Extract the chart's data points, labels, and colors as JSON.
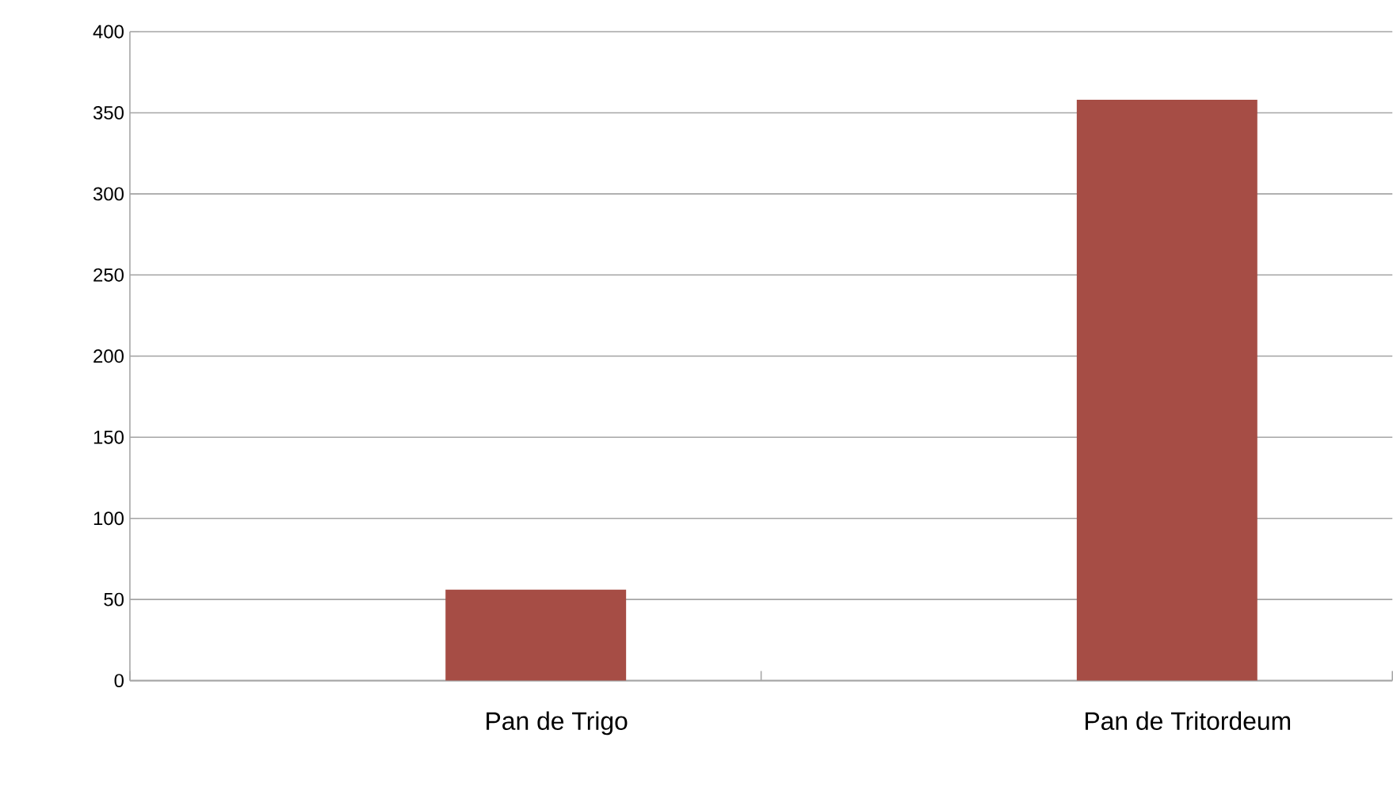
{
  "chart_data": {
    "type": "bar",
    "categories": [
      "Pan de Trigo",
      "Pan de Tritordeum"
    ],
    "values": [
      56,
      358
    ],
    "color": "#a64d45",
    "ylim": [
      0,
      400
    ],
    "yticks": [
      0,
      50,
      100,
      150,
      200,
      250,
      300,
      350,
      400
    ],
    "grid": "y"
  }
}
